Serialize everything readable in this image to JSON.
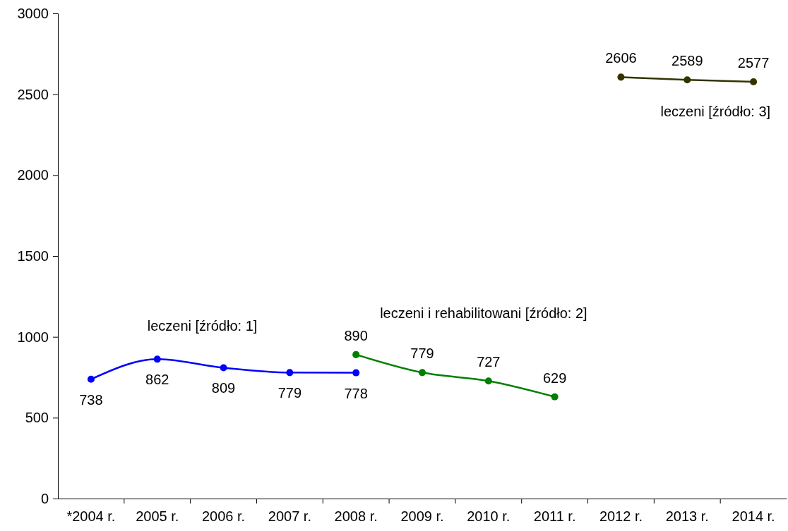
{
  "chart_data": {
    "type": "line",
    "categories": [
      "*2004 r.",
      "2005 r.",
      "2006 r.",
      "2007 r.",
      "2008 r.",
      "2009 r.",
      "2010 r.",
      "2011 r.",
      "2012 r.",
      "2013 r.",
      "2014 r."
    ],
    "series": [
      {
        "name": "leczeni [źródło: 1]",
        "color": "#0000ff",
        "values": [
          738,
          862,
          809,
          779,
          778,
          null,
          null,
          null,
          null,
          null,
          null
        ]
      },
      {
        "name": "leczeni i rehabilitowani [źródło: 2]",
        "color": "#008000",
        "values": [
          null,
          null,
          null,
          null,
          890,
          779,
          727,
          629,
          null,
          null,
          null
        ]
      },
      {
        "name": "leczeni [źródło: 3]",
        "color": "#333300",
        "values": [
          null,
          null,
          null,
          null,
          null,
          null,
          null,
          null,
          2606,
          2589,
          2577
        ]
      }
    ],
    "ylim": [
      0,
      3000
    ],
    "yticks": [
      0,
      500,
      1000,
      1500,
      2000,
      2500,
      3000
    ],
    "grid": false,
    "marker": "circle",
    "line_style": "solid",
    "data_labels": true
  }
}
